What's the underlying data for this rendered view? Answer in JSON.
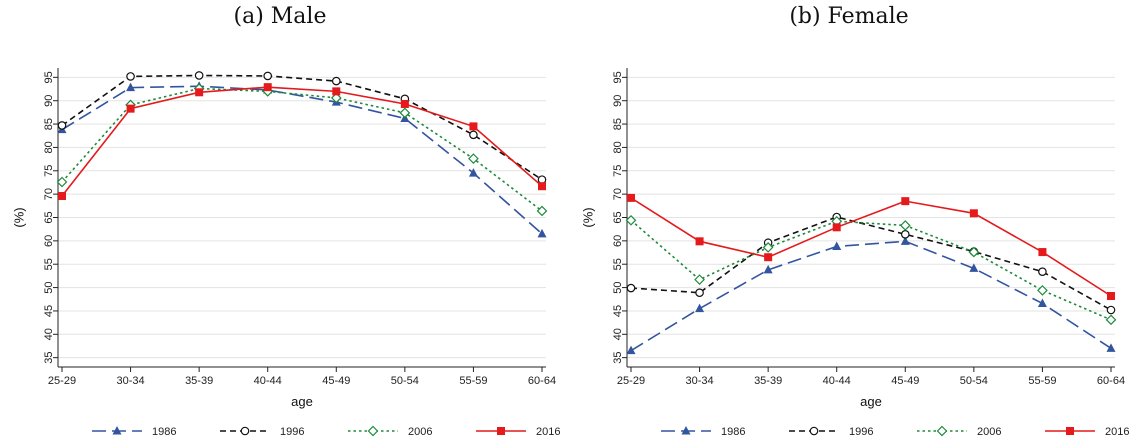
{
  "colors": {
    "s1986": "#3355a0",
    "s1996": "#111111",
    "s2006": "#1d8a3a",
    "s2016": "#e41a1c"
  },
  "chart_data": [
    {
      "type": "line",
      "title": "(a) Male",
      "xlabel": "age",
      "ylabel": "(%)",
      "categories": [
        "25-29",
        "30-34",
        "35-39",
        "40-44",
        "45-49",
        "50-54",
        "55-59",
        "60-64"
      ],
      "yticks": [
        35,
        40,
        45,
        50,
        55,
        60,
        65,
        70,
        75,
        80,
        85,
        90,
        95
      ],
      "ylim": [
        33,
        97
      ],
      "grid": true,
      "legend": "bottom",
      "series": [
        {
          "name": "1986",
          "marker": "triangle",
          "dash": "long-dash",
          "values": [
            83.8,
            92.8,
            93.1,
            92.3,
            89.7,
            86.2,
            74.5,
            61.5
          ]
        },
        {
          "name": "1996",
          "marker": "circle",
          "dash": "dash",
          "values": [
            84.7,
            95.2,
            95.4,
            95.3,
            94.2,
            90.4,
            82.7,
            73.1
          ]
        },
        {
          "name": "2006",
          "marker": "diamond",
          "dash": "dot",
          "values": [
            72.6,
            89.1,
            92.6,
            92.0,
            90.6,
            87.4,
            77.6,
            66.4
          ]
        },
        {
          "name": "2016",
          "marker": "square",
          "dash": "solid",
          "values": [
            69.6,
            88.3,
            91.8,
            92.9,
            92.0,
            89.3,
            84.5,
            71.7
          ]
        }
      ]
    },
    {
      "type": "line",
      "title": "(b) Female",
      "xlabel": "age",
      "ylabel": "(%)",
      "categories": [
        "25-29",
        "30-34",
        "35-39",
        "40-44",
        "45-49",
        "50-54",
        "55-59",
        "60-64"
      ],
      "yticks": [
        35,
        40,
        45,
        50,
        55,
        60,
        65,
        70,
        75,
        80,
        85,
        90,
        95
      ],
      "ylim": [
        33,
        97
      ],
      "grid": true,
      "legend": "bottom",
      "series": [
        {
          "name": "1986",
          "marker": "triangle",
          "dash": "long-dash",
          "values": [
            36.5,
            45.5,
            53.8,
            58.8,
            59.9,
            54.1,
            46.6,
            37.0
          ]
        },
        {
          "name": "1996",
          "marker": "circle",
          "dash": "dash",
          "values": [
            49.9,
            48.9,
            59.6,
            65.1,
            61.4,
            57.7,
            53.4,
            45.2
          ]
        },
        {
          "name": "2006",
          "marker": "diamond",
          "dash": "dot",
          "values": [
            64.4,
            51.7,
            58.6,
            64.2,
            63.3,
            57.6,
            49.4,
            43.1
          ]
        },
        {
          "name": "2016",
          "marker": "square",
          "dash": "solid",
          "values": [
            69.2,
            59.9,
            56.5,
            62.9,
            68.5,
            65.9,
            57.6,
            48.2
          ]
        }
      ]
    }
  ]
}
